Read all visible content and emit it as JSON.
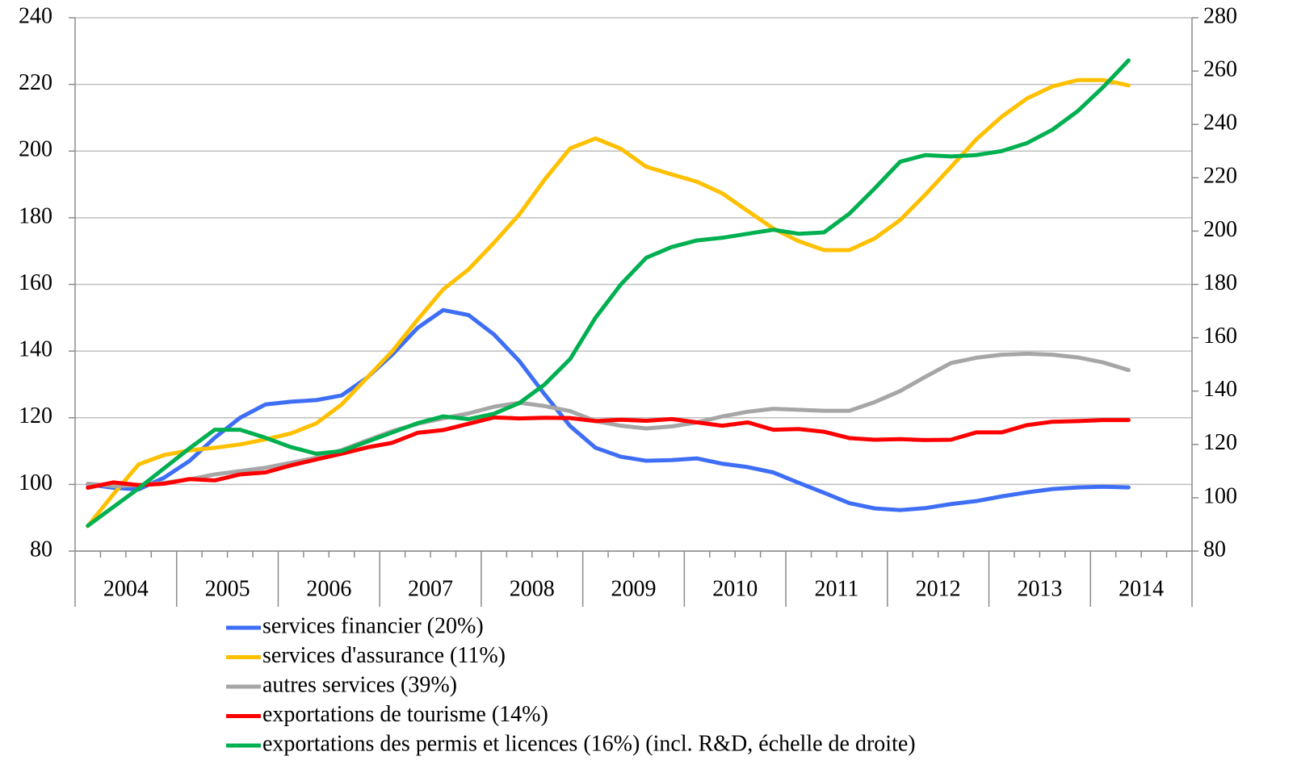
{
  "chart_data": {
    "type": "line",
    "categories": [
      "2004",
      null,
      null,
      null,
      "2005",
      null,
      null,
      null,
      "2006",
      null,
      null,
      null,
      "2007",
      null,
      null,
      null,
      "2008",
      null,
      null,
      null,
      "2009",
      null,
      null,
      null,
      "2010",
      null,
      null,
      null,
      "2011",
      null,
      null,
      null,
      "2012",
      null,
      null,
      null,
      "2013",
      null,
      null,
      null,
      "2014",
      null,
      null,
      null
    ],
    "ylim": [
      80,
      240
    ],
    "yticks": [
      80,
      100,
      120,
      140,
      160,
      180,
      200,
      220,
      240
    ],
    "y2lim": [
      80,
      280
    ],
    "y2ticks": [
      80,
      100,
      120,
      140,
      160,
      180,
      200,
      220,
      240,
      260,
      280
    ],
    "grid": true,
    "series": [
      {
        "name": "services financier (20%)",
        "color": "#3d6ef5",
        "values": [
          100,
          99,
          98.5,
          102,
          107,
          114,
          120,
          124,
          124.8,
          125.3,
          126.7,
          132,
          139,
          147,
          152.3,
          150.8,
          145,
          137,
          127,
          117.5,
          111,
          108.3,
          107.1,
          107.3,
          107.8,
          106.2,
          105.2,
          103.6,
          100.5,
          97.5,
          94.4,
          92.8,
          92.3,
          92.9,
          94.1,
          95,
          96.4,
          97.6,
          98.6,
          99.1,
          99.3,
          99.1,
          null,
          null
        ]
      },
      {
        "name": "services d'assurance (11%)",
        "color": "#ffc000",
        "values": [
          87.5,
          97,
          106,
          108.8,
          110.2,
          111,
          112,
          113.5,
          115.3,
          118.3,
          124,
          132,
          140,
          149.5,
          158.5,
          164.5,
          172.5,
          181,
          191.5,
          200.8,
          203.8,
          200.7,
          195.3,
          193,
          190.8,
          187.3,
          182,
          176.8,
          173,
          170.3,
          170.3,
          173.8,
          179.3,
          187,
          195.2,
          203.5,
          210.3,
          215.8,
          219.4,
          221.3,
          221.3,
          219.7,
          null,
          null
        ]
      },
      {
        "name": "autres services (39%)",
        "color": "#a6a6a6",
        "values": [
          100.2,
          99.5,
          99.8,
          100.5,
          101.5,
          103,
          104,
          105,
          106.5,
          108,
          110.3,
          113.2,
          116,
          118.2,
          119.8,
          121.3,
          123.3,
          124.5,
          123.5,
          122,
          119,
          117.6,
          116.8,
          117.4,
          118.6,
          120.4,
          121.8,
          122.7,
          122.4,
          122.1,
          122.1,
          124.7,
          128,
          132.3,
          136.4,
          138,
          138.9,
          139.2,
          138.9,
          138.1,
          136.6,
          134.3,
          null,
          null
        ]
      },
      {
        "name": "exportations de tourisme (14%)",
        "color": "#ff0000",
        "values": [
          99,
          100.6,
          99.8,
          100.2,
          101.6,
          101.2,
          103,
          103.6,
          105.7,
          107.5,
          109.2,
          111.1,
          112.5,
          115.5,
          116.3,
          118.2,
          120.1,
          119.8,
          120,
          119.9,
          119,
          119.4,
          119.1,
          119.6,
          118.6,
          117.6,
          118.6,
          116.4,
          116.6,
          115.8,
          113.9,
          113.4,
          113.6,
          113.3,
          113.4,
          115.6,
          115.6,
          117.8,
          118.8,
          119,
          119.3,
          119.3,
          null,
          null
        ]
      },
      {
        "name": "exportations des permis et licences (16%) (incl. R&D, échelle de droite)",
        "color": "#00b050",
        "axis": "y2",
        "values": [
          89.5,
          96.5,
          103.5,
          111,
          118.5,
          125.5,
          125.5,
          122.5,
          119,
          116.5,
          117.5,
          121,
          124.5,
          128,
          130.5,
          129.5,
          131.5,
          135.5,
          142.5,
          152,
          167.5,
          180,
          190,
          194,
          196.5,
          197.5,
          199,
          200.5,
          199,
          199.5,
          206.5,
          216,
          226,
          228.5,
          228,
          228.5,
          230,
          233,
          238,
          245,
          254,
          264,
          null,
          null
        ]
      }
    ]
  }
}
